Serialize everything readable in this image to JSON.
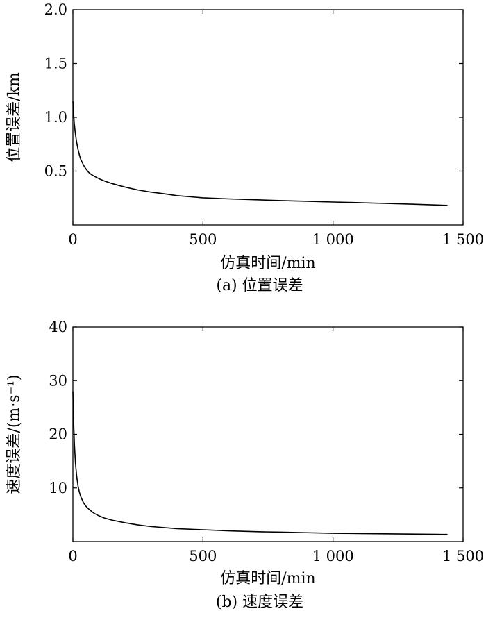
{
  "chart_data": [
    {
      "type": "line",
      "caption": "(a) 位置误差",
      "xlabel": "仿真时间/min",
      "ylabel": "位置误差/km",
      "xlim": [
        0,
        1500
      ],
      "ylim": [
        0,
        2.0
      ],
      "x_ticks": [
        {
          "value": 0,
          "label": "0"
        },
        {
          "value": 500,
          "label": "500"
        },
        {
          "value": 1000,
          "label": "1 000"
        },
        {
          "value": 1500,
          "label": "1 500"
        }
      ],
      "y_ticks": [
        {
          "value": 0.5,
          "label": "0.5"
        },
        {
          "value": 1.0,
          "label": "1.0"
        },
        {
          "value": 1.5,
          "label": "1.5"
        },
        {
          "value": 2.0,
          "label": "2.0"
        }
      ],
      "grid": false,
      "series": [
        {
          "x": [
            0,
            5,
            10,
            15,
            20,
            25,
            30,
            40,
            50,
            60,
            70,
            80,
            100,
            120,
            150,
            180,
            200,
            250,
            300,
            350,
            400,
            450,
            500,
            600,
            700,
            800,
            900,
            1000,
            1100,
            1200,
            1300,
            1400,
            1440
          ],
          "y": [
            1.15,
            0.95,
            0.84,
            0.76,
            0.7,
            0.65,
            0.61,
            0.56,
            0.52,
            0.49,
            0.47,
            0.455,
            0.43,
            0.41,
            0.385,
            0.365,
            0.352,
            0.325,
            0.305,
            0.29,
            0.272,
            0.262,
            0.252,
            0.242,
            0.234,
            0.226,
            0.22,
            0.213,
            0.207,
            0.2,
            0.193,
            0.185,
            0.182
          ]
        }
      ]
    },
    {
      "type": "line",
      "caption": "(b) 速度误差",
      "xlabel": "仿真时间/min",
      "ylabel": "速度误差/(m·s⁻¹)",
      "xlim": [
        0,
        1500
      ],
      "ylim": [
        0,
        40
      ],
      "x_ticks": [
        {
          "value": 0,
          "label": "0"
        },
        {
          "value": 500,
          "label": "500"
        },
        {
          "value": 1000,
          "label": "1 000"
        },
        {
          "value": 1500,
          "label": "1 500"
        }
      ],
      "y_ticks": [
        {
          "value": 10,
          "label": "10"
        },
        {
          "value": 20,
          "label": "20"
        },
        {
          "value": 30,
          "label": "30"
        },
        {
          "value": 40,
          "label": "40"
        }
      ],
      "grid": false,
      "series": [
        {
          "x": [
            0,
            3,
            6,
            10,
            15,
            20,
            25,
            30,
            40,
            50,
            60,
            80,
            100,
            120,
            150,
            200,
            250,
            300,
            400,
            500,
            600,
            700,
            800,
            900,
            1000,
            1100,
            1200,
            1300,
            1400,
            1440
          ],
          "y": [
            28,
            22,
            18,
            14.5,
            12,
            10.3,
            9.2,
            8.4,
            7.3,
            6.6,
            6.1,
            5.3,
            4.8,
            4.4,
            4.0,
            3.5,
            3.1,
            2.8,
            2.4,
            2.2,
            2.0,
            1.85,
            1.75,
            1.65,
            1.55,
            1.5,
            1.45,
            1.4,
            1.35,
            1.33
          ]
        }
      ]
    }
  ]
}
